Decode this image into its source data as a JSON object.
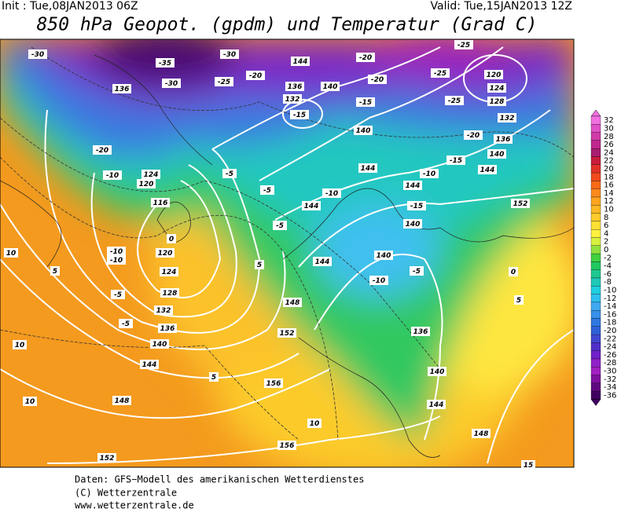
{
  "header": {
    "init": "Init : Tue,08JAN2013 06Z",
    "valid": "Valid: Tue,15JAN2013 12Z",
    "title": "850 hPa Geopot. (gpdm) und Temperatur (Grad C)"
  },
  "legend": [
    {
      "label": "32",
      "color": "#f070e0"
    },
    {
      "label": "30",
      "color": "#e050c8"
    },
    {
      "label": "28",
      "color": "#d03aa8"
    },
    {
      "label": "26",
      "color": "#c02890"
    },
    {
      "label": "24",
      "color": "#a81e70"
    },
    {
      "label": "22",
      "color": "#c81e3c"
    },
    {
      "label": "20",
      "color": "#e03228"
    },
    {
      "label": "18",
      "color": "#f04a1e"
    },
    {
      "label": "16",
      "color": "#f86a1a"
    },
    {
      "label": "14",
      "color": "#fa8a1e"
    },
    {
      "label": "12",
      "color": "#fca420"
    },
    {
      "label": "10",
      "color": "#fcb826"
    },
    {
      "label": "8",
      "color": "#fdcc2c"
    },
    {
      "label": "6",
      "color": "#fee034"
    },
    {
      "label": "4",
      "color": "#fff040"
    },
    {
      "label": "2",
      "color": "#d8f040"
    },
    {
      "label": "0",
      "color": "#90e040"
    },
    {
      "label": "-2",
      "color": "#40d040"
    },
    {
      "label": "-4",
      "color": "#20c860"
    },
    {
      "label": "-6",
      "color": "#20c890"
    },
    {
      "label": "-8",
      "color": "#20c8b8"
    },
    {
      "label": "-10",
      "color": "#20d0e0"
    },
    {
      "label": "-12",
      "color": "#30c0f0"
    },
    {
      "label": "-14",
      "color": "#40a8f0"
    },
    {
      "label": "-16",
      "color": "#3890e8"
    },
    {
      "label": "-18",
      "color": "#3078e0"
    },
    {
      "label": "-20",
      "color": "#3060d8"
    },
    {
      "label": "-22",
      "color": "#4048d0"
    },
    {
      "label": "-24",
      "color": "#5030c8"
    },
    {
      "label": "-26",
      "color": "#7020c8"
    },
    {
      "label": "-28",
      "color": "#9020c8"
    },
    {
      "label": "-30",
      "color": "#a020c0"
    },
    {
      "label": "-32",
      "color": "#8010a0"
    },
    {
      "label": "-34",
      "color": "#600880"
    },
    {
      "label": "-36",
      "color": "#400060"
    }
  ],
  "map": {
    "labels": [
      "-30",
      "-35",
      "-30",
      "-30",
      "-25",
      "-20",
      "144",
      "-20",
      "-25",
      "-20",
      "120",
      "-25",
      "124",
      "136",
      "136",
      "132",
      "140",
      "-15",
      "-15",
      "-25",
      "128",
      "132",
      "136",
      "-20",
      "-20",
      "140",
      "140",
      "144",
      "-15",
      "144",
      "-10",
      "152",
      "-5",
      "-5",
      "-10",
      "124",
      "120",
      "116",
      "144",
      "144",
      "-10",
      "-15",
      "140",
      "-5",
      "0",
      "-10",
      "-10",
      "120",
      "144",
      "140",
      "124",
      "-5",
      "-10",
      "5",
      "5",
      "128",
      "-5",
      "148",
      "0",
      "5",
      "132",
      "136",
      "-5",
      "140",
      "152",
      "136",
      "144",
      "10",
      "5",
      "156",
      "140",
      "10",
      "144",
      "148",
      "10",
      "156",
      "148",
      "152",
      "15",
      "10"
    ]
  },
  "footer": {
    "lines": [
      "Daten: GFS−Modell des amerikanischen Wetterdienstes",
      "(C) Wetterzentrale",
      "www.wetterzentrale.de"
    ]
  }
}
